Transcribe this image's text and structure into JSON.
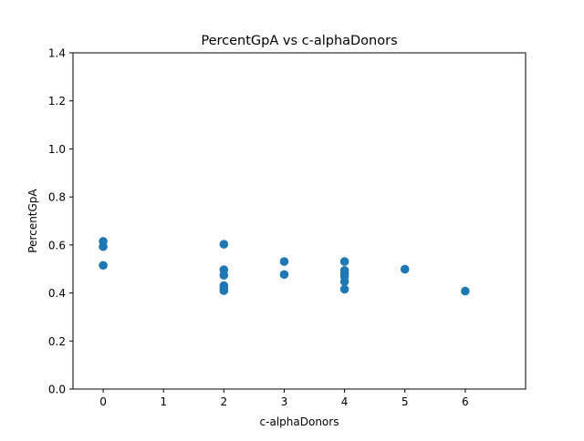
{
  "chart_data": {
    "type": "scatter",
    "title": "PercentGpA vs c-alphaDonors",
    "xlabel": "c-alphaDonors",
    "ylabel": "PercentGpA",
    "xlim": [
      -0.5,
      7.0
    ],
    "ylim": [
      0.0,
      1.4
    ],
    "xticks": [
      "0",
      "1",
      "2",
      "3",
      "4",
      "5",
      "6"
    ],
    "yticks": [
      "0.0",
      "0.2",
      "0.4",
      "0.6",
      "0.8",
      "1.0",
      "1.2",
      "1.4"
    ],
    "grid": false,
    "marker_color": "#1f77b4",
    "x": [
      0,
      0,
      0,
      2,
      2,
      2,
      2,
      2,
      2,
      3,
      3,
      4,
      4,
      4,
      4,
      4,
      4,
      5,
      6
    ],
    "y": [
      0.615,
      0.593,
      0.515,
      0.603,
      0.497,
      0.474,
      0.431,
      0.42,
      0.41,
      0.531,
      0.477,
      0.531,
      0.494,
      0.482,
      0.469,
      0.448,
      0.416,
      0.499,
      0.408
    ]
  }
}
